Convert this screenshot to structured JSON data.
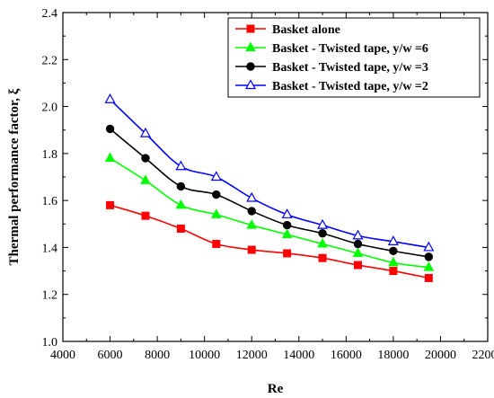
{
  "chart_data": {
    "type": "line",
    "xlabel": "Re",
    "ylabel": "Thermal performance factor, ξ",
    "xlim": [
      4000,
      22000
    ],
    "ylim": [
      1.0,
      2.4
    ],
    "xticks": [
      4000,
      6000,
      8000,
      10000,
      12000,
      14000,
      16000,
      18000,
      20000,
      22000
    ],
    "yticks": [
      1.0,
      1.2,
      1.4,
      1.6,
      1.8,
      2.0,
      2.2,
      2.4
    ],
    "xtick_labels": [
      "4000",
      "6000",
      "8000",
      "10000",
      "12000",
      "14000",
      "16000",
      "18000",
      "20000",
      "22000"
    ],
    "ytick_labels": [
      "1.0",
      "1.2",
      "1.4",
      "1.6",
      "1.8",
      "2.0",
      "2.2",
      "2.4"
    ],
    "grid": false,
    "legend_position": "top-right",
    "x": [
      6000,
      7500,
      9000,
      10500,
      12000,
      13500,
      15000,
      16500,
      18000,
      19500
    ],
    "series": [
      {
        "name": "Basket alone",
        "color": "#ff0000",
        "marker": "square-filled",
        "values": [
          1.58,
          1.535,
          1.48,
          1.415,
          1.39,
          1.375,
          1.355,
          1.325,
          1.3,
          1.27
        ]
      },
      {
        "name": "Basket - Twisted tape, y/w =6",
        "color": "#00ff00",
        "marker": "triangle-filled",
        "values": [
          1.78,
          1.685,
          1.58,
          1.54,
          1.495,
          1.455,
          1.415,
          1.375,
          1.335,
          1.315
        ]
      },
      {
        "name": "Basket - Twisted tape, y/w =3",
        "color": "#000000",
        "marker": "circle-filled",
        "values": [
          1.905,
          1.78,
          1.66,
          1.625,
          1.555,
          1.495,
          1.46,
          1.415,
          1.385,
          1.36
        ]
      },
      {
        "name": "Basket - Twisted tape, y/w =2",
        "color": "#0000ff",
        "marker": "triangle-open",
        "values": [
          2.03,
          1.885,
          1.745,
          1.7,
          1.61,
          1.54,
          1.495,
          1.45,
          1.425,
          1.4
        ]
      }
    ]
  }
}
